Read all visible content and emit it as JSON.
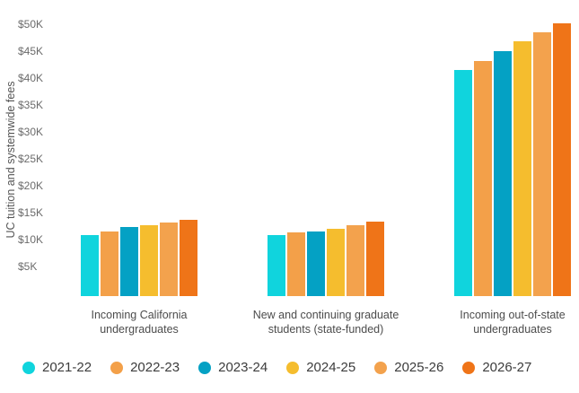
{
  "chart_data": {
    "type": "bar",
    "title": "",
    "ylabel": "UC tuition and systemwide fees",
    "xlabel": "",
    "grid": false,
    "legend_position": "bottom",
    "ylim": [
      0,
      50000
    ],
    "y_tick_format": "$#K",
    "y_ticks": [
      {
        "label": "$5K",
        "value": 5000
      },
      {
        "label": "$10K",
        "value": 10000
      },
      {
        "label": "$15K",
        "value": 15000
      },
      {
        "label": "$20K",
        "value": 20000
      },
      {
        "label": "$25K",
        "value": 25000
      },
      {
        "label": "$30K",
        "value": 30000
      },
      {
        "label": "$35K",
        "value": 35000
      },
      {
        "label": "$40K",
        "value": 40000
      },
      {
        "label": "$45K",
        "value": 45000
      },
      {
        "label": "$50K",
        "value": 50000
      }
    ],
    "categories": [
      "Incoming California undergraduates",
      "New and continuing graduate students (state-funded)",
      "Incoming out-of-state undergraduates"
    ],
    "series": [
      {
        "name": "2021-22",
        "color": "#10d4dd",
        "values": [
          11400,
          11300,
          42000
        ]
      },
      {
        "name": "2022-23",
        "color": "#f3a049",
        "values": [
          12000,
          11800,
          43700
        ]
      },
      {
        "name": "2023-24",
        "color": "#04a1c4",
        "values": [
          12800,
          12000,
          45500
        ]
      },
      {
        "name": "2024-25",
        "color": "#f5bd2e",
        "values": [
          13200,
          12500,
          47400
        ]
      },
      {
        "name": "2025-26",
        "color": "#f3a24d",
        "values": [
          13600,
          13100,
          49000
        ]
      },
      {
        "name": "2026-27",
        "color": "#ef7418",
        "values": [
          14100,
          13800,
          50700
        ]
      }
    ]
  }
}
